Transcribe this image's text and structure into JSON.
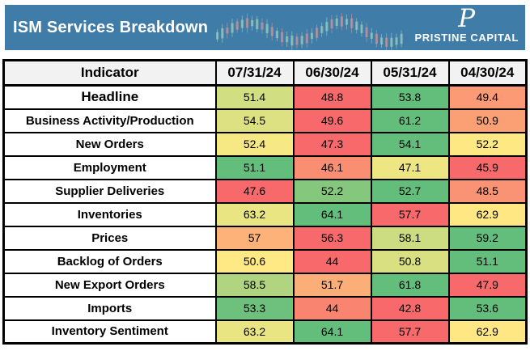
{
  "header": {
    "title": "ISM Services Breakdown",
    "brand": {
      "monogram": "P",
      "name": "PRISTINE CAPITAL"
    },
    "sparkline_icon": "candlestick-chart-icon"
  },
  "colors": {
    "topbar": "#3F7CA8",
    "table_header_bg": "#F2F2F2",
    "border": "#000000",
    "scale_low": "#F8696B",
    "scale_mid": "#FFEB84",
    "scale_high": "#63BE7B",
    "spark_green": "rgba(165,215,190,0.6)",
    "spark_red": "rgba(225,150,150,0.6)"
  },
  "chart_data": {
    "type": "table",
    "title": "ISM Services Breakdown",
    "legend_note": "heatmap table, per-row red-yellow-green color scale",
    "columns": [
      "Indicator",
      "07/31/24",
      "06/30/24",
      "05/31/24",
      "04/30/24"
    ],
    "rows": [
      {
        "indicator": "Headline",
        "values": [
          "51.4",
          "48.8",
          "53.8",
          "49.4"
        ],
        "colors": [
          "#D1DE81",
          "#F8696B",
          "#63BE7B",
          "#FB9A74"
        ]
      },
      {
        "indicator": "Business Activity/Production",
        "values": [
          "54.5",
          "49.6",
          "61.2",
          "50.9"
        ],
        "colors": [
          "#DEE182",
          "#F8696B",
          "#63BE7B",
          "#FBA075"
        ]
      },
      {
        "indicator": "New Orders",
        "values": [
          "52.4",
          "47.3",
          "54.1",
          "52.2"
        ],
        "colors": [
          "#F6E883",
          "#F8696B",
          "#63BE7B",
          "#FEE883"
        ]
      },
      {
        "indicator": "Employment",
        "values": [
          "51.1",
          "46.1",
          "47.1",
          "45.9"
        ],
        "colors": [
          "#63BE7B",
          "#FA8E72",
          "#EDE683",
          "#F8696B"
        ]
      },
      {
        "indicator": "Supplier Deliveries",
        "values": [
          "47.6",
          "52.2",
          "52.7",
          "48.5"
        ],
        "colors": [
          "#F8696B",
          "#84C77D",
          "#63BE7B",
          "#FA9373"
        ]
      },
      {
        "indicator": "Inventories",
        "values": [
          "63.2",
          "64.1",
          "57.7",
          "62.9"
        ],
        "colors": [
          "#E9E583",
          "#63BE7B",
          "#F8696B",
          "#FFE783"
        ]
      },
      {
        "indicator": "Prices",
        "values": [
          "57",
          "56.3",
          "58.1",
          "59.2"
        ],
        "colors": [
          "#FCB279",
          "#F8696B",
          "#CBDC81",
          "#63BE7B"
        ]
      },
      {
        "indicator": "Backlog of Orders",
        "values": [
          "50.6",
          "44",
          "50.8",
          "51.1"
        ],
        "colors": [
          "#FFE984",
          "#F8696B",
          "#D8E082",
          "#63BE7B"
        ]
      },
      {
        "indicator": "New Export Orders",
        "values": [
          "58.5",
          "51.7",
          "61.8",
          "47.9"
        ],
        "colors": [
          "#B0D47F",
          "#FCAE78",
          "#63BE7B",
          "#F8696B"
        ]
      },
      {
        "indicator": "Imports",
        "values": [
          "53.3",
          "44",
          "42.8",
          "53.6"
        ],
        "colors": [
          "#6DC17C",
          "#F98470",
          "#F8696B",
          "#63BE7B"
        ]
      },
      {
        "indicator": "Inventory Sentiment",
        "values": [
          "63.2",
          "64.1",
          "57.7",
          "62.9"
        ],
        "colors": [
          "#E9E583",
          "#63BE7B",
          "#F8696B",
          "#FFE783"
        ]
      }
    ]
  }
}
